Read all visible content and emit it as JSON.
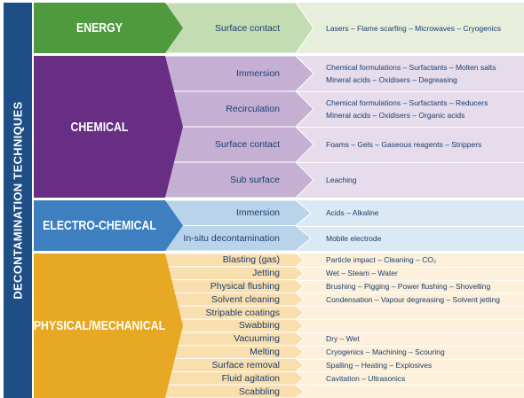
{
  "side_label": "DECONTAMINATION TECHNIQUES",
  "categories": [
    {
      "name": "ENERGY",
      "colors": {
        "dark": "#4f9a3f",
        "mid": "#c4dcb4",
        "light": "#e7efdc"
      },
      "rows": [
        {
          "technique": "Surface contact",
          "methods": [
            "Lasers – Flame scarfing – Microwaves – Cryogenics"
          ]
        }
      ]
    },
    {
      "name": "CHEMICAL",
      "colors": {
        "dark": "#682e83",
        "mid": "#c5b0d4",
        "light": "#e6dcec"
      },
      "rows": [
        {
          "technique": "Immersion",
          "methods": [
            "Chemical formulations – Surfactants – Molten salts",
            "Mineral acids – Oxidisers – Degreasing"
          ]
        },
        {
          "technique": "Recirculation",
          "methods": [
            "Chemical formulations – Surfactants – Reducers",
            "Mineral acids – Oxidisers – Organic acids"
          ]
        },
        {
          "technique": "Surface contact",
          "methods": [
            "Foams – Gels – Gaseous reagents – Strippers"
          ]
        },
        {
          "technique": "Sub surface",
          "methods": [
            "Leaching"
          ]
        }
      ]
    },
    {
      "name": "ELECTRO-CHEMICAL",
      "colors": {
        "dark": "#3d7fbf",
        "mid": "#b9d3ea",
        "light": "#dbe9f4"
      },
      "rows": [
        {
          "technique": "Immersion",
          "methods": [
            "Acids – Alkaline"
          ]
        },
        {
          "technique": "In-situ decontamination",
          "methods": [
            "Mobile electrode"
          ]
        }
      ]
    },
    {
      "name": "PHYSICAL/MECHANICAL",
      "colors": {
        "dark": "#e7a823",
        "mid": "#f9deae",
        "light": "#fcf0da"
      },
      "rows": [
        {
          "technique": "Blasting (gas)",
          "methods": [
            "Particle impact – Cleaning – CO₂"
          ]
        },
        {
          "technique": "Jetting",
          "methods": [
            "Wet – Steam – Water"
          ]
        },
        {
          "technique": "Physical flushing",
          "methods": [
            "Brushing – Pigging – Power flushing – Shovelling"
          ]
        },
        {
          "technique": "Solvent cleaning",
          "methods": [
            "Condensation – Vapour degreasing – Solvent jetting"
          ]
        },
        {
          "technique": "Stripable coatings",
          "methods": []
        },
        {
          "technique": "Swabbing",
          "methods": []
        },
        {
          "technique": "Vacuuming",
          "methods": [
            "Dry – Wet"
          ]
        },
        {
          "technique": "Melting",
          "methods": [
            "Cryogenics – Machining – Scouring"
          ]
        },
        {
          "technique": "Surface removal",
          "methods": [
            "Spalling – Heating – Explosives"
          ]
        },
        {
          "technique": "Fluid agitation",
          "methods": [
            "Cavitation – Ultrasonics"
          ]
        },
        {
          "technique": "Scabbling",
          "methods": []
        }
      ]
    }
  ]
}
